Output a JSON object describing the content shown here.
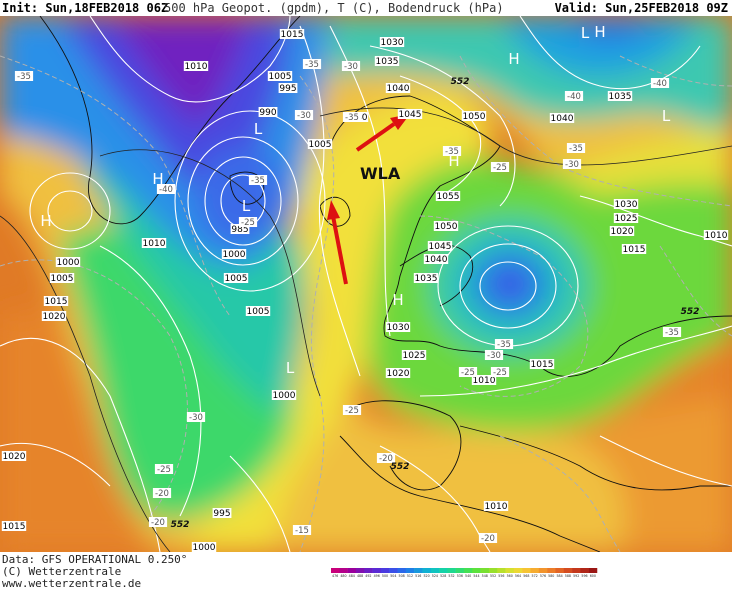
{
  "header": {
    "init_label": "Init:",
    "init_value": "Sun,18FEB2018 06Z",
    "title": "500 hPa Geopot. (gpdm), T (C), Bodendruck (hPa)",
    "valid_label": "Valid:",
    "valid_value": "Sun,25FEB2018 09Z"
  },
  "footer": {
    "line1": "Data: GFS OPERATIONAL 0.250°",
    "line2": "(C) Wetterzentrale",
    "line3": "www.wetterzentrale.de"
  },
  "colorbar": {
    "labels": [
      "476",
      "480",
      "484",
      "488",
      "492",
      "496",
      "500",
      "504",
      "508",
      "512",
      "516",
      "520",
      "524",
      "528",
      "532",
      "536",
      "540",
      "544",
      "548",
      "552",
      "556",
      "560",
      "564",
      "568",
      "572",
      "576",
      "580",
      "584",
      "588",
      "592",
      "596",
      "600"
    ],
    "colors": [
      "#c8007a",
      "#b4008a",
      "#9a009c",
      "#8010b0",
      "#6a1ec4",
      "#5a2ad4",
      "#4a3ae0",
      "#3a50e8",
      "#2a68ea",
      "#1e80e6",
      "#1898dc",
      "#10b0d2",
      "#10c4c0",
      "#14d2a8",
      "#1ed890",
      "#30dc70",
      "#44e054",
      "#5ce23c",
      "#78e030",
      "#98e02c",
      "#b8e02c",
      "#d6e030",
      "#ecd834",
      "#f6c434",
      "#f6ac30",
      "#f2942c",
      "#ec7c28",
      "#e26424",
      "#d44c20",
      "#c4381c",
      "#b02618",
      "#9a1614"
    ]
  },
  "map_labels": {
    "highs": [
      "H",
      "H",
      "H",
      "H",
      "H",
      "H"
    ],
    "lows": [
      "L",
      "L",
      "L",
      "L",
      "L"
    ],
    "annotation": "WLA",
    "pressure": [
      "1015",
      "1010",
      "1005",
      "995",
      "990",
      "1030",
      "1035",
      "1040",
      "1045",
      "1050",
      "1040",
      "1035",
      "L",
      "1040",
      "1005",
      "985",
      "1000",
      "1005",
      "1010",
      "1000",
      "1005",
      "1015",
      "1020",
      "1005",
      "1000",
      "1055",
      "1050",
      "1045",
      "1040",
      "1035",
      "1030",
      "1025",
      "1020",
      "1030",
      "1025",
      "1020",
      "1015",
      "1010",
      "1015",
      "1010",
      "1020",
      "1015",
      "995",
      "1000",
      "1010",
      "1015"
    ],
    "temperature": [
      "-35",
      "-35",
      "-35",
      "-30",
      "-40",
      "-35",
      "-30",
      "-40",
      "-40",
      "-35",
      "-35",
      "-30",
      "-25",
      "-35",
      "-30",
      "-25",
      "-25",
      "-35",
      "-30",
      "-25",
      "-20",
      "-20",
      "-25",
      "-20",
      "-15",
      "-20",
      "-15",
      "-25"
    ],
    "geopotential": [
      "552",
      "552",
      "552",
      "552"
    ]
  },
  "colors": {
    "arrow": "#dd1111",
    "isobar": "#ffffff",
    "isotherm": "#a0a0a0"
  }
}
